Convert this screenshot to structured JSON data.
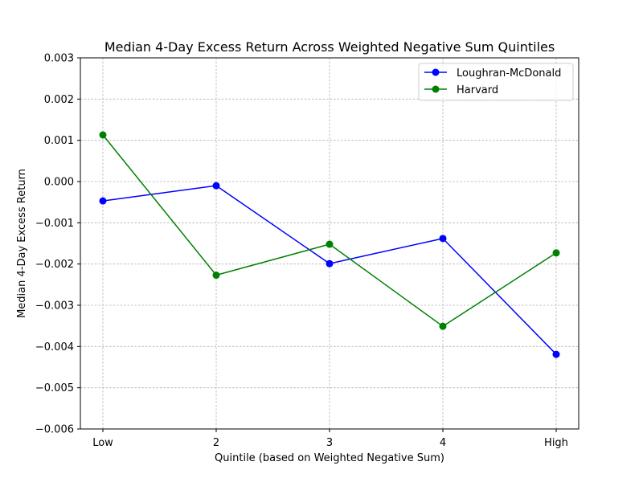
{
  "chart_data": {
    "type": "line",
    "title": "Median 4-Day Excess Return Across Weighted Negative Sum Quintiles",
    "xlabel": "Quintile (based on Weighted Negative Sum)",
    "ylabel": "Median 4-Day Excess Return",
    "categories": [
      "Low",
      "2",
      "3",
      "4",
      "High"
    ],
    "ylim": [
      -0.006,
      0.003
    ],
    "yticks": [
      -0.006,
      -0.005,
      -0.004,
      -0.003,
      -0.002,
      -0.001,
      0.0,
      0.001,
      0.002,
      0.003
    ],
    "ytick_labels": [
      "−0.006",
      "−0.005",
      "−0.004",
      "−0.003",
      "−0.002",
      "−0.001",
      "0.000",
      "0.001",
      "0.002",
      "0.003"
    ],
    "grid": true,
    "legend_position": "top-right",
    "series": [
      {
        "name": "Loughran-McDonald",
        "color": "#0000ff",
        "marker": "circle",
        "values": [
          -0.00047,
          -0.0001,
          -0.00199,
          -0.00138,
          -0.00419
        ]
      },
      {
        "name": "Harvard",
        "color": "#008000",
        "marker": "circle",
        "values": [
          0.00113,
          -0.00227,
          -0.00152,
          -0.00351,
          -0.00173
        ]
      }
    ]
  }
}
